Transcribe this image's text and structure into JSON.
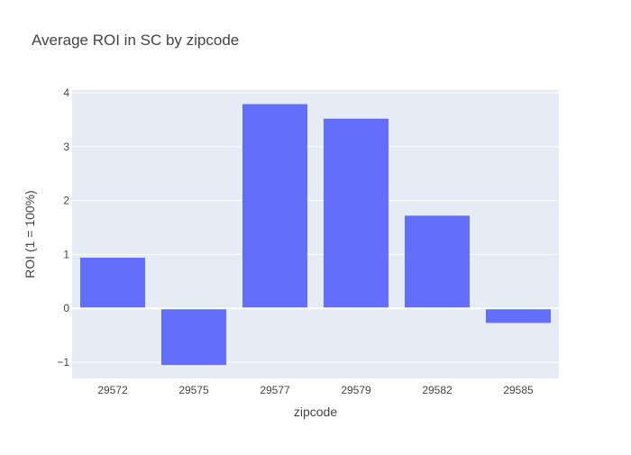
{
  "chart_data": {
    "type": "bar",
    "title": "Average ROI in SC by zipcode",
    "xlabel": "zipcode",
    "ylabel": "ROI (1 = 100%)",
    "categories": [
      "29572",
      "29575",
      "29577",
      "29579",
      "29582",
      "29585"
    ],
    "values": [
      0.94,
      -1.05,
      3.79,
      3.52,
      1.72,
      -0.27
    ],
    "ylim": [
      -1.3,
      4.05
    ],
    "yticks": [
      -1,
      0,
      1,
      2,
      3,
      4
    ],
    "ytick_labels": [
      "−1",
      "0",
      "1",
      "2",
      "3",
      "4"
    ],
    "grid": true,
    "colors": {
      "bar": "#636efa",
      "plot_background": "#e5ecf6",
      "gridline": "#ffffff"
    }
  }
}
